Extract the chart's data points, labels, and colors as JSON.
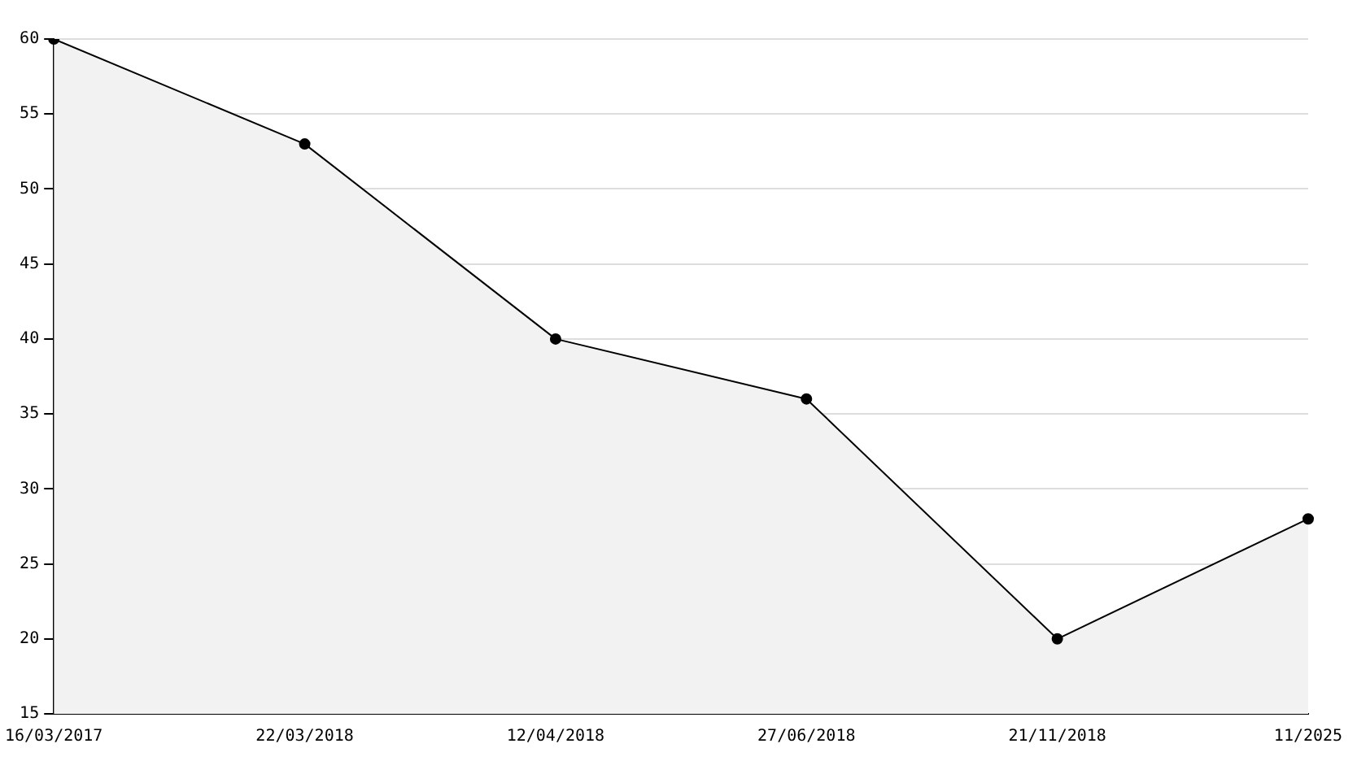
{
  "chart_data": {
    "type": "area",
    "categories": [
      "16/03/2017",
      "22/03/2018",
      "12/04/2018",
      "27/06/2018",
      "21/11/2018",
      "11/2025"
    ],
    "series": [
      {
        "color": "#000000",
        "values": [
          60,
          53,
          40,
          36,
          20,
          28
        ]
      }
    ],
    "ylim": [
      15,
      60
    ],
    "yticks": [
      15,
      20,
      25,
      30,
      35,
      40,
      45,
      50,
      55,
      60
    ],
    "grid": "y",
    "legend": false,
    "marker": "circle",
    "line_style": "solid"
  }
}
